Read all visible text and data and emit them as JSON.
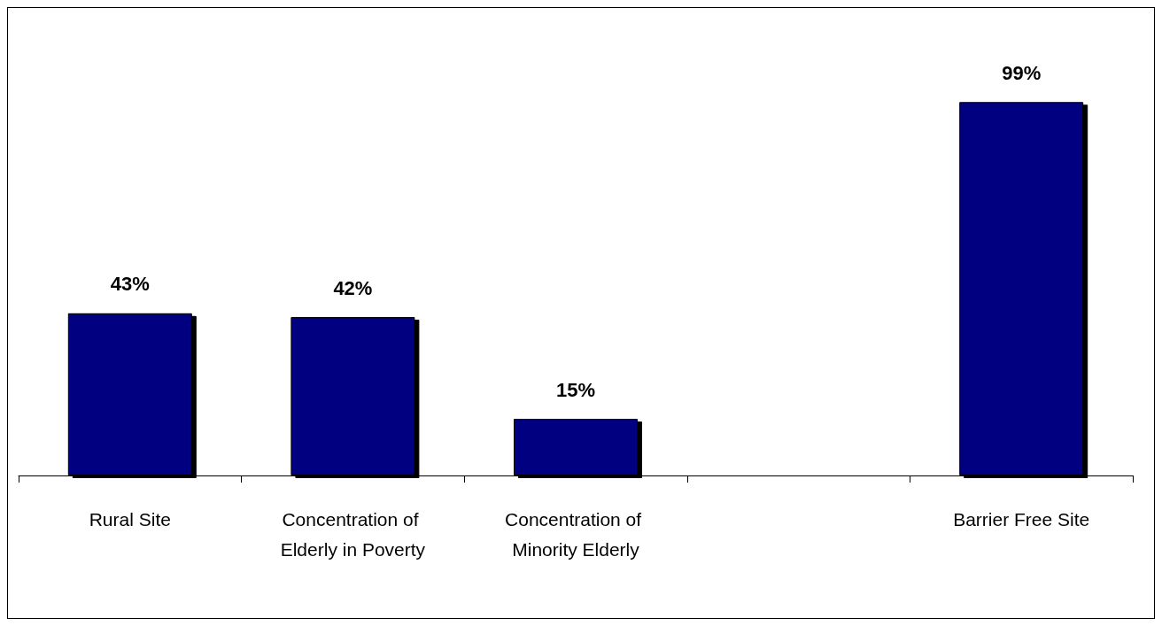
{
  "chart_data": {
    "type": "bar",
    "categories": [
      "Rural Site",
      "Concentration of Elderly in Poverty",
      "Concentration of Minority Elderly",
      null,
      "Barrier Free Site"
    ],
    "values": [
      43,
      42,
      15,
      null,
      99
    ],
    "value_labels": [
      "43%",
      "42%",
      "15%",
      null,
      "99%"
    ],
    "color": "#000080"
  }
}
